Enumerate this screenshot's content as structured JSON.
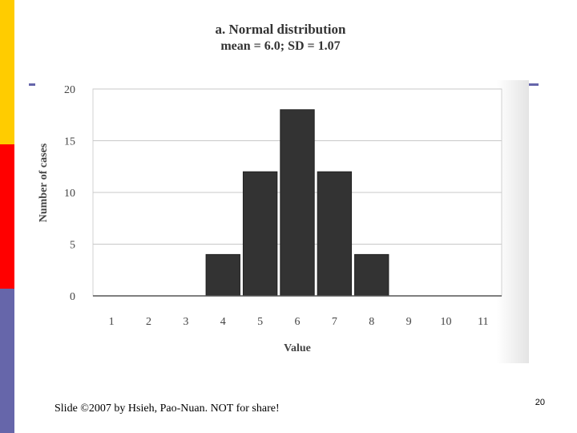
{
  "slide": {
    "footer": "Slide ©2007 by Hsieh, Pao-Nuan. NOT for share!",
    "page_number": "20",
    "accent_colors": {
      "yellow": "#ffcc00",
      "red": "#ff0000",
      "purple": "#6666aa"
    }
  },
  "chart_data": {
    "type": "bar",
    "title": "a. Normal distribution",
    "subtitle": "mean = 6.0; SD = 1.07",
    "xlabel": "Value",
    "ylabel": "Number of cases",
    "categories": [
      "1",
      "2",
      "3",
      "4",
      "5",
      "6",
      "7",
      "8",
      "9",
      "10",
      "11"
    ],
    "values": [
      0,
      0,
      0,
      4,
      12,
      18,
      12,
      4,
      0,
      0,
      0
    ],
    "y_ticks": [
      "0",
      "5",
      "10",
      "15",
      "20"
    ],
    "ylim": [
      0,
      20
    ],
    "grid": true,
    "bar_color": "#333333",
    "grid_color": "#c8c8c8"
  }
}
